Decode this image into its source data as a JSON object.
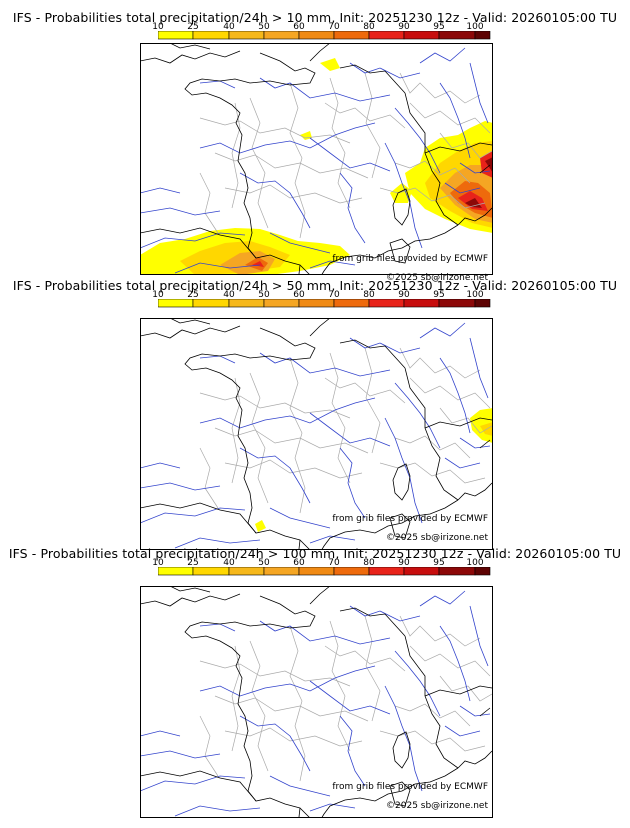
{
  "scale_labels": [
    "10",
    "25",
    "40",
    "50",
    "60",
    "70",
    "80",
    "90",
    "95",
    "100"
  ],
  "scale_colors": [
    "#ffff00",
    "#ffd700",
    "#f6b81b",
    "#f5a623",
    "#f08a14",
    "#ee6a0c",
    "#e8231a",
    "#c70d0d",
    "#8c0808",
    "#5e0303"
  ],
  "colors": {
    "border": "#000000",
    "rivers": "#3344cc",
    "regions": "#aaaaaa"
  },
  "panels": [
    {
      "title": "IFS - Probabilities total precipitation/24h > 10 mm, Init: 20251230 12z - Valid: 20260105:00 TU",
      "source": "from grib files provided by ECMWF",
      "copyright": "©2025 sb@irizone.net"
    },
    {
      "title": "IFS - Probabilities total precipitation/24h > 50 mm, Init: 20251230 12z - Valid: 20260105:00 TU",
      "source": "from grib files provided by ECMWF",
      "copyright": "©2025 sb@irizone.net"
    },
    {
      "title": "IFS - Probabilities total precipitation/24h > 100 mm, Init: 20251230 12z - Valid: 20260105:00 TU",
      "source": "from grib files provided by ECMWF",
      "copyright": "©2025 sb@irizone.net"
    }
  ]
}
